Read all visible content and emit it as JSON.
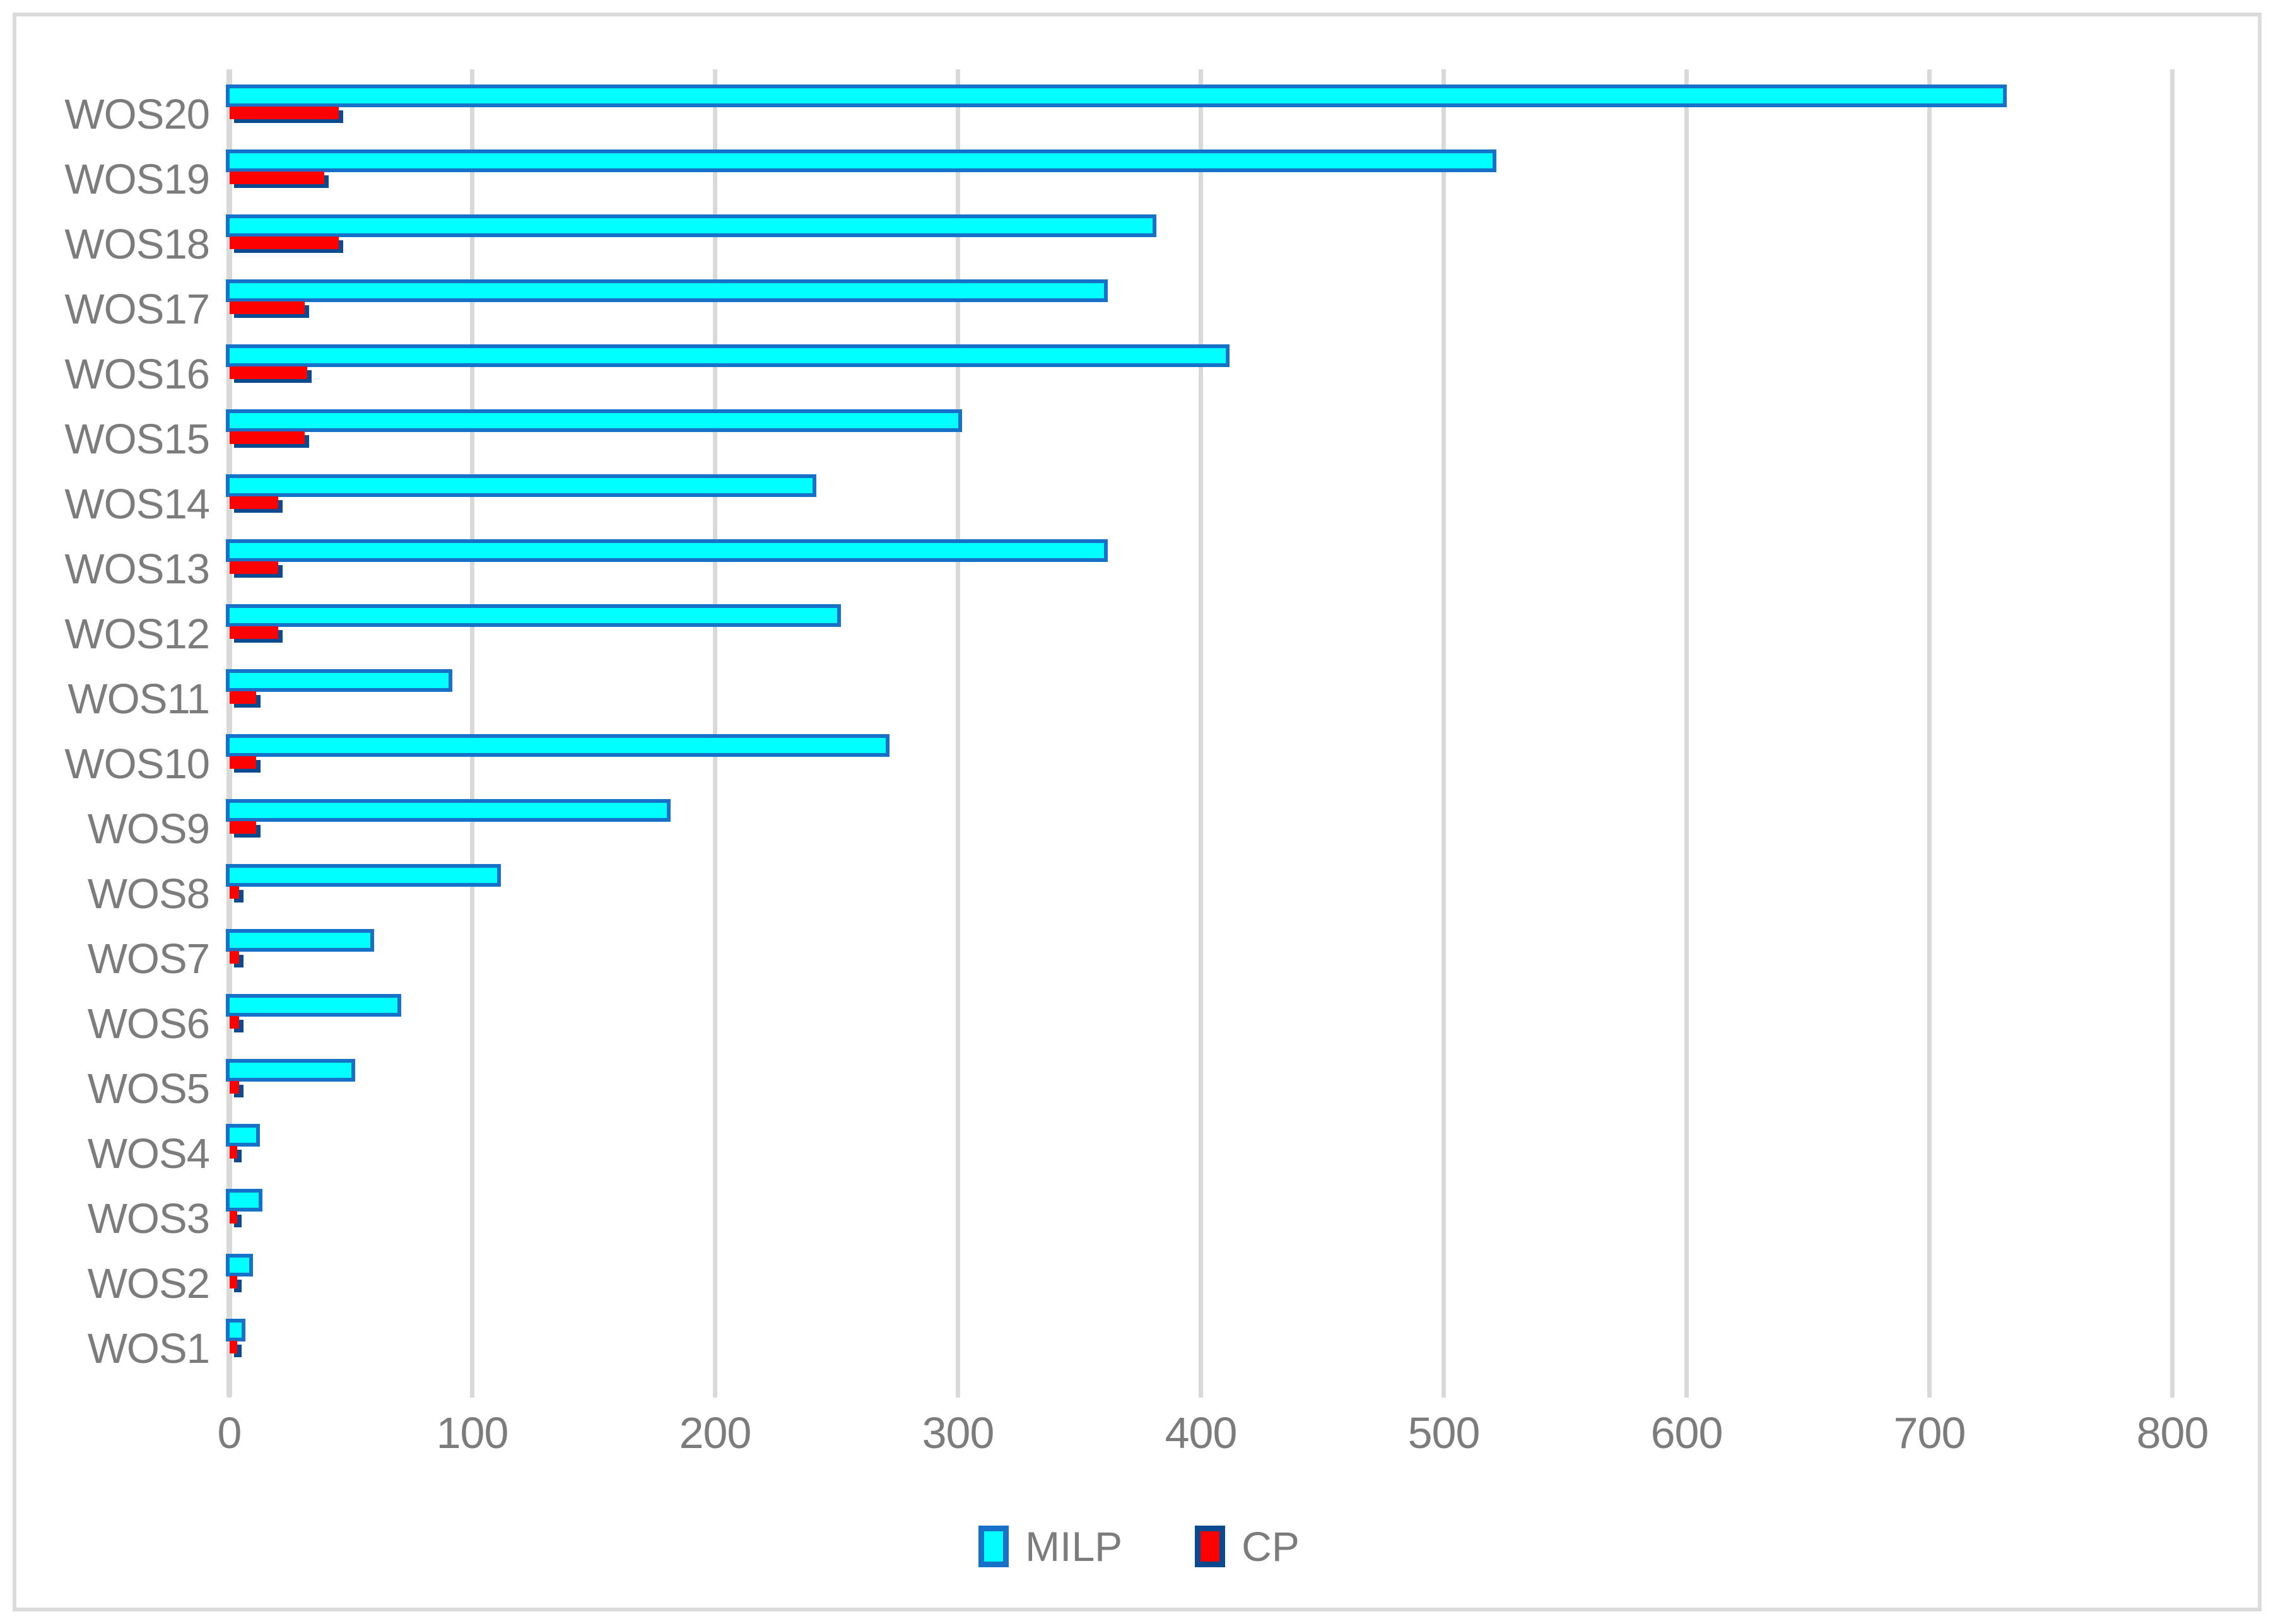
{
  "figure": {
    "background_color": "#FFFFFF",
    "frame_border_color": "#DBDBDB",
    "gridline_color": "#D9D9D9",
    "text_color": "#7C7C7C"
  },
  "chart_data": {
    "type": "bar",
    "orientation": "horizontal",
    "title": "",
    "categories": [
      "WOS20",
      "WOS19",
      "WOS18",
      "WOS17",
      "WOS16",
      "WOS15",
      "WOS14",
      "WOS13",
      "WOS12",
      "WOS11",
      "WOS10",
      "WOS9",
      "WOS8",
      "WOS7",
      "WOS6",
      "WOS5",
      "WOS4",
      "WOS3",
      "WOS2",
      "WOS1"
    ],
    "series": [
      {
        "name": "MILP",
        "fill_color": "#00FFFF",
        "border_color": "#1871C8",
        "values": [
          730,
          520,
          380,
          360,
          410,
          300,
          240,
          360,
          250,
          90,
          270,
          180,
          110,
          58,
          69,
          50,
          11,
          12,
          8,
          5
        ]
      },
      {
        "name": "CP",
        "fill_color": "#FE0000",
        "border_color": "#0C4A8F",
        "values": [
          45,
          39,
          45,
          31,
          32,
          31,
          20,
          20,
          20,
          11,
          11,
          11,
          4,
          4,
          4,
          4,
          3,
          3,
          3,
          3
        ]
      }
    ],
    "x_axis": {
      "min": 0,
      "max": 800,
      "tick_interval": 100,
      "tick_labels": [
        "0",
        "100",
        "200",
        "300",
        "400",
        "500",
        "600",
        "700",
        "800"
      ]
    },
    "grid": true,
    "legend": {
      "position": "bottom",
      "entries": [
        "MILP",
        "CP"
      ]
    }
  }
}
